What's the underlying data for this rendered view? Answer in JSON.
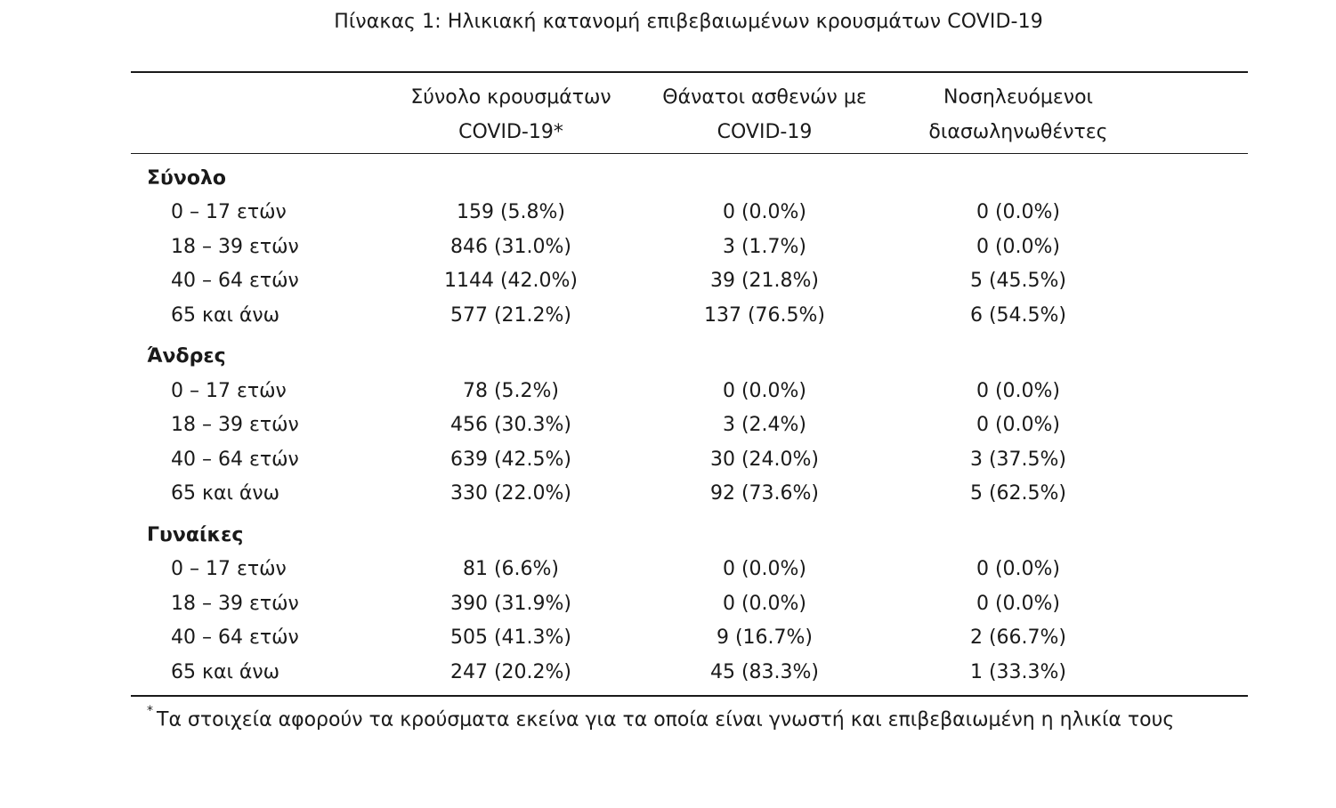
{
  "caption": "Πίνακας 1: Ηλικιακή κατανομή επιβεβαιωμένων κρουσμάτων COVID-19",
  "columns": [
    {
      "line1": "Σύνολο κρουσμάτων",
      "line2": "COVID-19*"
    },
    {
      "line1": "Θάνατοι ασθενών με",
      "line2": "COVID-19"
    },
    {
      "line1": "Νοσηλευόμενοι",
      "line2": "διασωληνωθέντες"
    }
  ],
  "groups": [
    {
      "label": "Σύνολο",
      "rows": [
        {
          "label": "0 – 17 ετών",
          "cases": "159 (5.8%)",
          "deaths": "0 (0.0%)",
          "intubated": "0 (0.0%)"
        },
        {
          "label": "18 – 39 ετών",
          "cases": "846 (31.0%)",
          "deaths": "3 (1.7%)",
          "intubated": "0 (0.0%)"
        },
        {
          "label": "40 – 64 ετών",
          "cases": "1144 (42.0%)",
          "deaths": "39 (21.8%)",
          "intubated": "5 (45.5%)"
        },
        {
          "label": "65 και άνω",
          "cases": "577 (21.2%)",
          "deaths": "137 (76.5%)",
          "intubated": "6 (54.5%)"
        }
      ]
    },
    {
      "label": "Άνδρες",
      "rows": [
        {
          "label": "0 – 17 ετών",
          "cases": "78 (5.2%)",
          "deaths": "0 (0.0%)",
          "intubated": "0 (0.0%)"
        },
        {
          "label": "18 – 39 ετών",
          "cases": "456 (30.3%)",
          "deaths": "3 (2.4%)",
          "intubated": "0 (0.0%)"
        },
        {
          "label": "40 – 64 ετών",
          "cases": "639 (42.5%)",
          "deaths": "30 (24.0%)",
          "intubated": "3 (37.5%)"
        },
        {
          "label": "65 και άνω",
          "cases": "330 (22.0%)",
          "deaths": "92 (73.6%)",
          "intubated": "5 (62.5%)"
        }
      ]
    },
    {
      "label": "Γυναίκες",
      "rows": [
        {
          "label": "0 – 17 ετών",
          "cases": "81 (6.6%)",
          "deaths": "0 (0.0%)",
          "intubated": "0 (0.0%)"
        },
        {
          "label": "18 – 39 ετών",
          "cases": "390 (31.9%)",
          "deaths": "0 (0.0%)",
          "intubated": "0 (0.0%)"
        },
        {
          "label": "40 – 64 ετών",
          "cases": "505 (41.3%)",
          "deaths": "9 (16.7%)",
          "intubated": "2 (66.7%)"
        },
        {
          "label": "65 και άνω",
          "cases": "247 (20.2%)",
          "deaths": "45 (83.3%)",
          "intubated": "1 (33.3%)"
        }
      ]
    }
  ],
  "footnote": {
    "marker": "*",
    "text": "Τα στοιχεία αφορούν τα κρούσματα εκείνα για τα οποία είναι γνωστή και επιβεβαιωμένη η ηλικία τους"
  }
}
